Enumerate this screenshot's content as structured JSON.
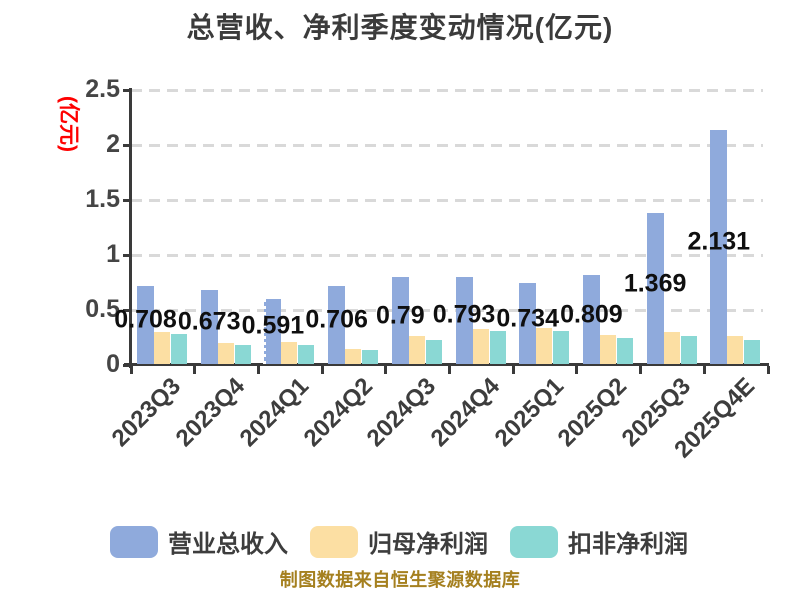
{
  "title": "总营收、净利季度变动情况(亿元)",
  "footer": "制图数据来自恒生聚源数据库",
  "colors": {
    "background": "#ffffff",
    "title": "#3b3b3b",
    "axis": "#3a3a3a",
    "grid": "#d9d9d9",
    "y_axis_label": "#fe0000",
    "tick_label": "#454545",
    "value_label": "#0f0f0f",
    "footer": "#a5801f",
    "series_revenue": "#8faadc",
    "series_net_profit": "#fcdfa3",
    "series_non_gaap": "#8ad8d4"
  },
  "chart_data": {
    "type": "bar",
    "title": "总营收、净利季度变动情况(亿元)",
    "ylabel": "(亿元)",
    "xlabel": "",
    "categories": [
      "2023Q3",
      "2023Q4",
      "2024Q1",
      "2024Q2",
      "2024Q3",
      "2024Q4",
      "2025Q1",
      "2025Q2",
      "2025Q3",
      "2025Q4E"
    ],
    "series": [
      {
        "name": "营业总收入",
        "color": "#8faadc",
        "values": [
          0.708,
          0.673,
          0.591,
          0.706,
          0.79,
          0.793,
          0.734,
          0.809,
          1.369,
          2.131
        ],
        "labels": [
          "0.708",
          "0.673",
          "0.591",
          "0.706",
          "0.79",
          "0.793",
          "0.734",
          "0.809",
          "1.369",
          "2.131"
        ],
        "labeled": true
      },
      {
        "name": "归母净利润",
        "color": "#fcdfa3",
        "values": [
          0.29,
          0.19,
          0.2,
          0.14,
          0.25,
          0.32,
          0.33,
          0.26,
          0.29,
          0.25
        ],
        "labeled": false
      },
      {
        "name": "扣非净利润",
        "color": "#8ad8d4",
        "values": [
          0.27,
          0.17,
          0.17,
          0.13,
          0.22,
          0.3,
          0.3,
          0.24,
          0.25,
          0.22
        ],
        "labeled": false
      }
    ],
    "ylim": [
      0,
      2.5
    ],
    "yticks": [
      0,
      0.5,
      1,
      1.5,
      2,
      2.5
    ],
    "ytick_labels": [
      "0",
      "0.5",
      "1",
      "1.5",
      "2",
      "2.5"
    ],
    "grid": "horizontal-dashed",
    "legend_position": "bottom",
    "annotations": {
      "dotted_bar_edge_category": "2024Q1"
    }
  }
}
